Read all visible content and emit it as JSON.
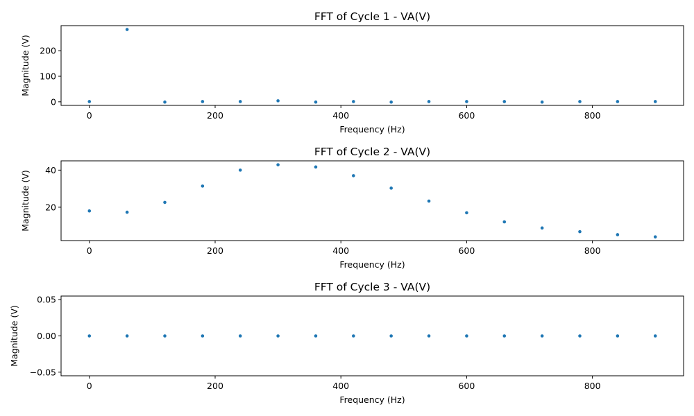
{
  "chart_data": [
    {
      "type": "scatter",
      "title": "FFT of Cycle 1 - VA(V)",
      "xlabel": "Frequency (Hz)",
      "ylabel": "Magnitude (V)",
      "xlim": [
        -45,
        945
      ],
      "ylim": [
        -14,
        298
      ],
      "xticks": [
        0,
        200,
        400,
        600,
        800
      ],
      "yticks": [
        0,
        100,
        200
      ],
      "ytick_labels": [
        "0",
        "100",
        "200"
      ],
      "marker_color": "#1f77b4",
      "x": [
        0,
        60,
        120,
        180,
        240,
        300,
        360,
        420,
        480,
        540,
        600,
        660,
        720,
        780,
        840,
        900
      ],
      "y": [
        1,
        283,
        -1,
        1,
        1,
        4,
        -1,
        1,
        -1,
        1,
        1,
        1,
        -1,
        1,
        1,
        1
      ]
    },
    {
      "type": "scatter",
      "title": "FFT of Cycle 2 - VA(V)",
      "xlabel": "Frequency (Hz)",
      "ylabel": "Magnitude (V)",
      "xlim": [
        -45,
        945
      ],
      "ylim": [
        2,
        45
      ],
      "xticks": [
        0,
        200,
        400,
        600,
        800
      ],
      "yticks": [
        20,
        40
      ],
      "ytick_labels": [
        "20",
        "40"
      ],
      "marker_color": "#1f77b4",
      "x": [
        0,
        60,
        120,
        180,
        240,
        300,
        360,
        420,
        480,
        540,
        600,
        660,
        720,
        780,
        840,
        900
      ],
      "y": [
        18.0,
        17.3,
        22.6,
        31.4,
        40.0,
        42.9,
        41.7,
        37.0,
        30.3,
        23.3,
        17.0,
        12.1,
        8.8,
        6.8,
        5.2,
        4.0
      ]
    },
    {
      "type": "scatter",
      "title": "FFT of Cycle 3 - VA(V)",
      "xlabel": "Frequency (Hz)",
      "ylabel": "Magnitude (V)",
      "xlim": [
        -45,
        945
      ],
      "ylim": [
        -0.055,
        0.055
      ],
      "xticks": [
        0,
        200,
        400,
        600,
        800
      ],
      "yticks": [
        -0.05,
        0,
        0.05
      ],
      "ytick_labels": [
        "−0.05",
        "0.00",
        "0.05"
      ],
      "marker_color": "#1f77b4",
      "x": [
        0,
        60,
        120,
        180,
        240,
        300,
        360,
        420,
        480,
        540,
        600,
        660,
        720,
        780,
        840,
        900
      ],
      "y": [
        0,
        0,
        0,
        0,
        0,
        0,
        0,
        0,
        0,
        0,
        0,
        0,
        0,
        0,
        0,
        0
      ]
    }
  ]
}
